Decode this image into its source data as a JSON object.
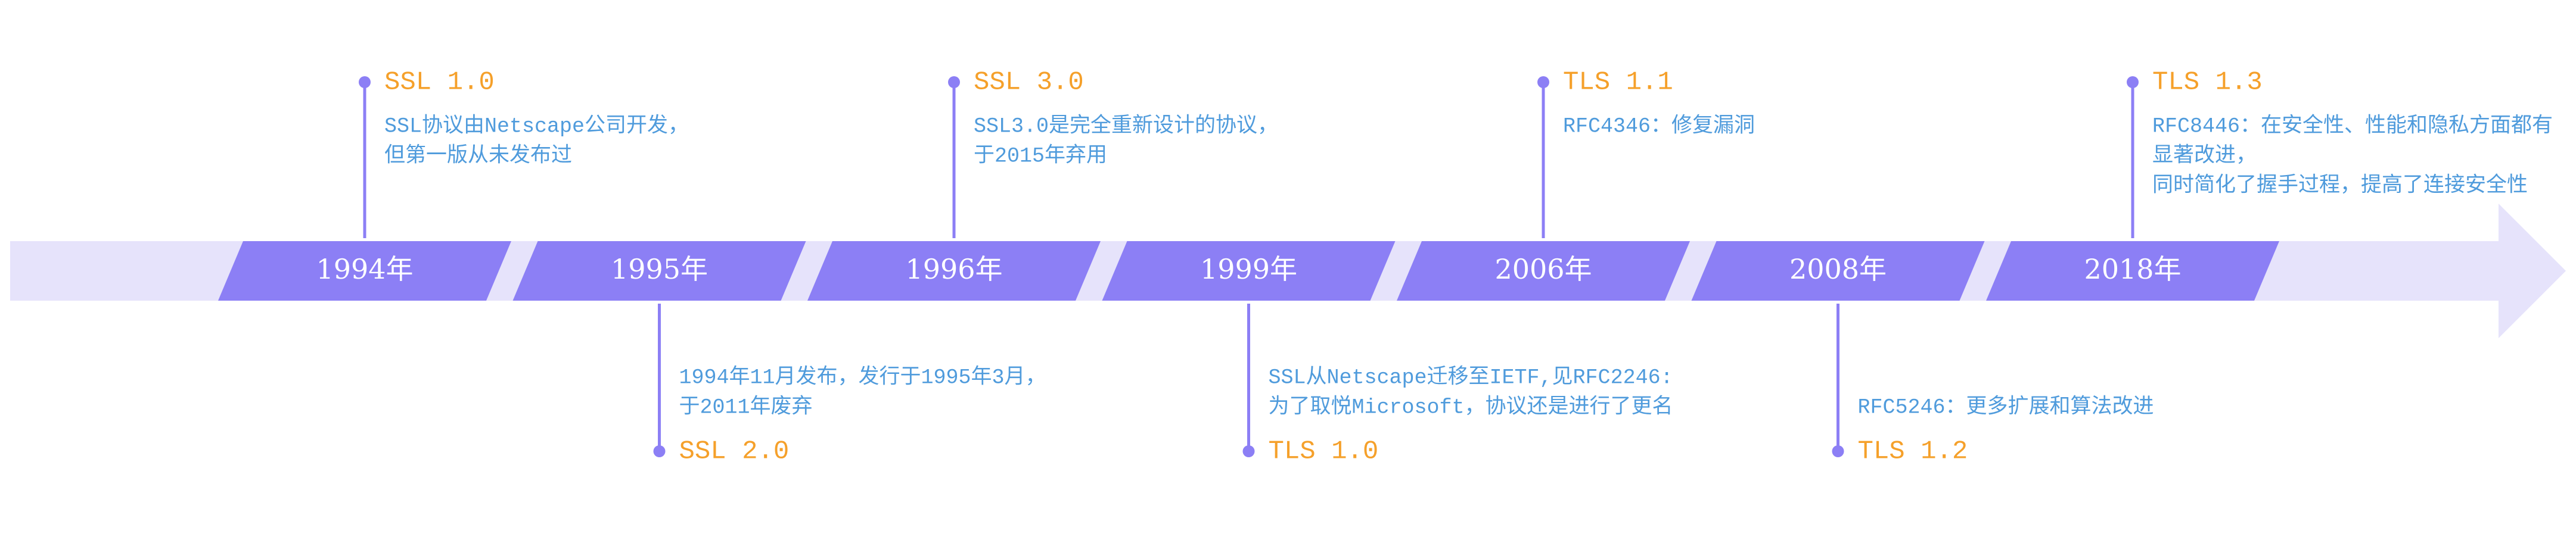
{
  "events": [
    {
      "year": "1994年",
      "title": "SSL 1.0",
      "position": "top",
      "description": [
        "SSL协议由Netscape公司开发，",
        "但第一版从未发布过"
      ]
    },
    {
      "year": "1995年",
      "title": "SSL 2.0",
      "position": "bottom",
      "description": [
        "1994年11月发布，发行于1995年3月，",
        "于2011年废弃"
      ]
    },
    {
      "year": "1996年",
      "title": "SSL 3.0",
      "position": "top",
      "description": [
        "SSL3.0是完全重新设计的协议，",
        "于2015年弃用"
      ]
    },
    {
      "year": "1999年",
      "title": "TLS 1.0",
      "position": "bottom",
      "description": [
        "SSL从Netscape迁移至IETF,见RFC2246:",
        "为了取悦Microsoft，协议还是进行了更名"
      ]
    },
    {
      "year": "2006年",
      "title": "TLS 1.1",
      "position": "top",
      "description": [
        "RFC4346：修复漏洞"
      ]
    },
    {
      "year": "2008年",
      "title": "TLS 1.2",
      "position": "bottom",
      "description": [
        "RFC5246：更多扩展和算法改进"
      ]
    },
    {
      "year": "2018年",
      "title": "TLS 1.3",
      "position": "top",
      "description": [
        "RFC8446：在安全性、性能和隐私方面都有",
        "显著改进，",
        "同时简化了握手过程，提高了连接安全性"
      ]
    }
  ]
}
